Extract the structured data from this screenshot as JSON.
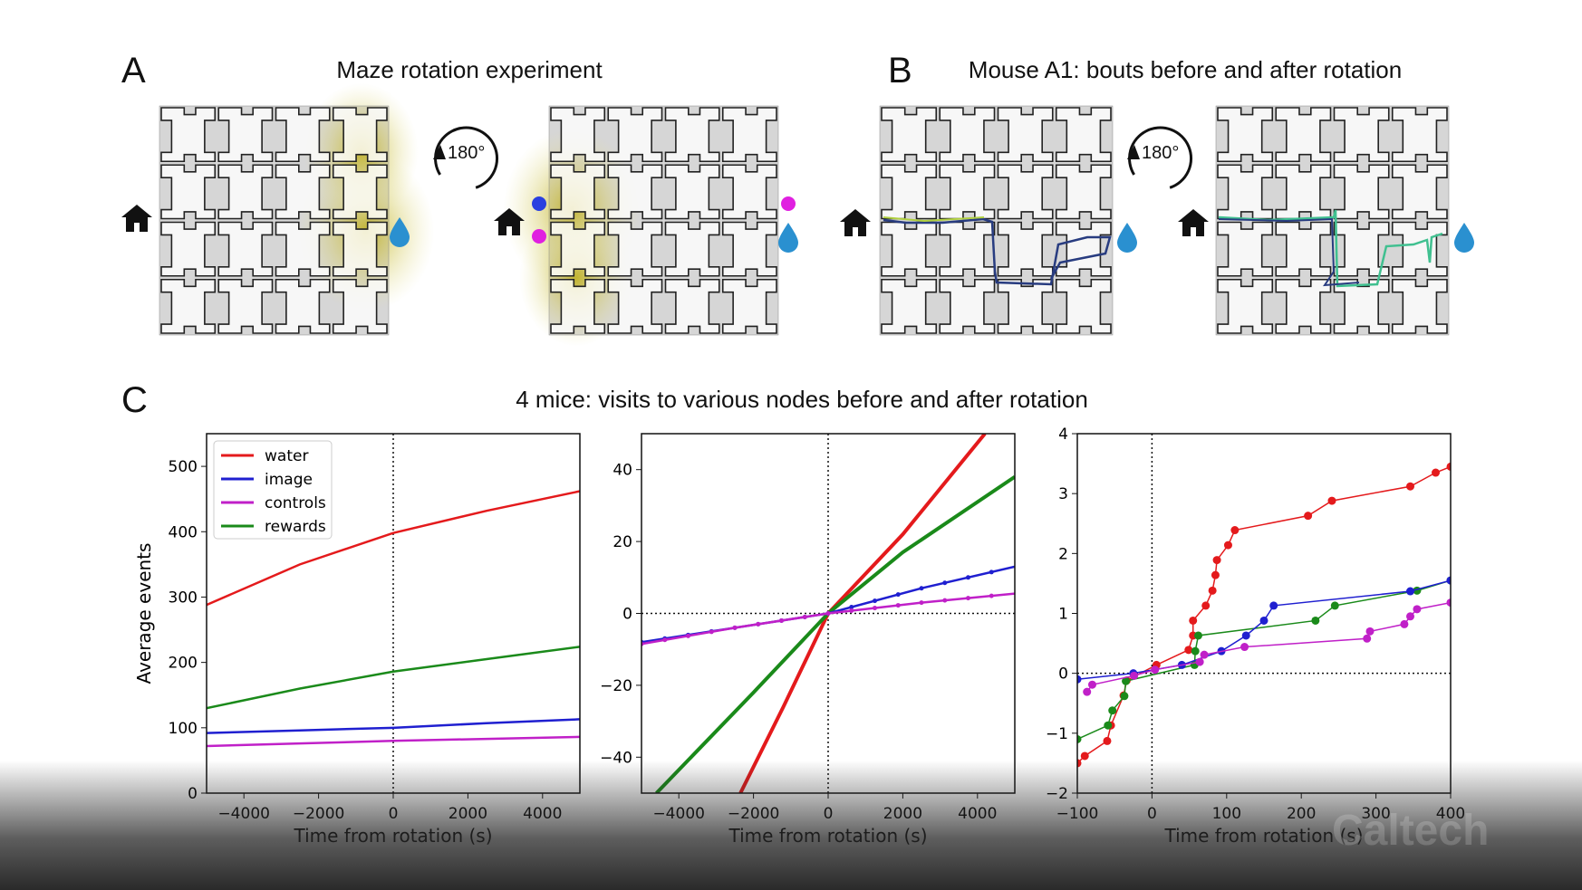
{
  "panels": {
    "a": {
      "letter": "A",
      "title": "Maze rotation experiment",
      "rotation_label": "180°"
    },
    "b": {
      "letter": "B",
      "title": "Mouse A1: bouts before and after rotation",
      "rotation_label": "180°"
    },
    "c": {
      "letter": "C",
      "title": "4 mice: visits to various nodes before and after rotation"
    }
  },
  "icons": [
    "home-icon",
    "water-drop-icon",
    "rotation-arrow-icon"
  ],
  "colors": {
    "water": "#e41a1c",
    "image": "#1f1fd0",
    "controls": "#c020c8",
    "rewards": "#1a8a1a",
    "highlight": "#c8c040",
    "marker_blue": "#2a40e0",
    "marker_magenta": "#e020e0"
  },
  "watermark": "Caltech",
  "chart_data": [
    {
      "type": "line",
      "title": "",
      "xlabel": "Time from rotation (s)",
      "ylabel": "Average events",
      "xlim": [
        -5000,
        5000
      ],
      "ylim": [
        0,
        550
      ],
      "xticks": [
        -4000,
        -2000,
        0,
        2000,
        4000
      ],
      "xtick_labels": [
        "−4000",
        "−2000",
        "0",
        "2000",
        "4000"
      ],
      "yticks": [
        0,
        100,
        200,
        300,
        400,
        500
      ],
      "ytick_labels": [
        "0",
        "100",
        "200",
        "300",
        "400",
        "500"
      ],
      "legend": {
        "placement": "top-left",
        "entries": [
          "water",
          "image",
          "controls",
          "rewards"
        ]
      },
      "series": [
        {
          "name": "water",
          "x": [
            -5000,
            -2500,
            0,
            2500,
            5000
          ],
          "y": [
            288,
            350,
            398,
            432,
            462
          ]
        },
        {
          "name": "image",
          "x": [
            -5000,
            -2500,
            0,
            2500,
            5000
          ],
          "y": [
            92,
            96,
            100,
            107,
            113
          ]
        },
        {
          "name": "controls",
          "x": [
            -5000,
            -2500,
            0,
            2500,
            5000
          ],
          "y": [
            72,
            76,
            80,
            83,
            86
          ]
        },
        {
          "name": "rewards",
          "x": [
            -5000,
            -2500,
            0,
            2500,
            5000
          ],
          "y": [
            130,
            160,
            186,
            205,
            224
          ]
        }
      ]
    },
    {
      "type": "line",
      "xlabel": "Time from rotation (s)",
      "ylabel": "",
      "xlim": [
        -5000,
        5000
      ],
      "ylim": [
        -50,
        50
      ],
      "xticks": [
        -4000,
        -2000,
        0,
        2000,
        4000
      ],
      "xtick_labels": [
        "−4000",
        "−2000",
        "0",
        "2000",
        "4000"
      ],
      "yticks": [
        -40,
        -20,
        0,
        20,
        40
      ],
      "ytick_labels": [
        "−40",
        "−20",
        "0",
        "20",
        "40"
      ],
      "series": [
        {
          "name": "water",
          "x": [
            -2350,
            -1200,
            0,
            2000,
            4200
          ],
          "y": [
            -50,
            -26,
            0,
            22,
            50
          ]
        },
        {
          "name": "rewards",
          "x": [
            -4600,
            -2000,
            0,
            2000,
            5000
          ],
          "y": [
            -50,
            -22,
            0,
            17,
            38
          ]
        },
        {
          "name": "image",
          "x": [
            -5000,
            -2500,
            0,
            2500,
            5000
          ],
          "y": [
            -8,
            -4,
            0,
            7,
            13
          ]
        },
        {
          "name": "controls",
          "x": [
            -5000,
            -2500,
            0,
            2500,
            5000
          ],
          "y": [
            -8.5,
            -4,
            0,
            3,
            5.5
          ]
        }
      ]
    },
    {
      "type": "line",
      "xlabel": "Time from rotation (s)",
      "ylabel": "",
      "xlim": [
        -100,
        400
      ],
      "ylim": [
        -2,
        4
      ],
      "xticks": [
        -100,
        0,
        100,
        200,
        300,
        400
      ],
      "xtick_labels": [
        "−100",
        "0",
        "100",
        "200",
        "300",
        "400"
      ],
      "yticks": [
        -2,
        -1,
        0,
        1,
        2,
        3,
        4
      ],
      "ytick_labels": [
        "−2",
        "−1",
        "0",
        "1",
        "2",
        "3",
        "4"
      ],
      "series": [
        {
          "name": "water",
          "x": [
            -100,
            -90,
            -60,
            -55,
            -38,
            -34,
            6,
            49,
            55,
            55,
            72,
            81,
            85,
            87,
            102,
            111,
            209,
            241,
            346,
            380,
            400
          ],
          "y": [
            -1.5,
            -1.38,
            -1.13,
            -0.87,
            -0.37,
            -0.12,
            0.14,
            0.39,
            0.63,
            0.88,
            1.13,
            1.38,
            1.64,
            1.89,
            2.14,
            2.39,
            2.63,
            2.88,
            3.12,
            3.35,
            3.45
          ],
          "markers": true
        },
        {
          "name": "rewards",
          "x": [
            -100,
            -59,
            -53,
            -37,
            -35,
            57,
            58,
            62,
            219,
            245,
            355,
            400
          ],
          "y": [
            -1.1,
            -0.87,
            -0.62,
            -0.38,
            -0.13,
            0.14,
            0.37,
            0.63,
            0.88,
            1.13,
            1.38,
            1.55
          ],
          "markers": true
        },
        {
          "name": "image",
          "x": [
            -100,
            -25,
            40,
            93,
            126,
            150,
            163,
            346,
            400
          ],
          "y": [
            -0.1,
            0.0,
            0.14,
            0.37,
            0.63,
            0.88,
            1.13,
            1.37,
            1.55
          ],
          "markers": true
        },
        {
          "name": "controls",
          "x": [
            -87,
            -80,
            -24,
            4,
            64,
            70,
            124,
            288,
            292,
            338,
            346,
            355,
            400
          ],
          "y": [
            -0.31,
            -0.19,
            -0.04,
            0.06,
            0.19,
            0.31,
            0.44,
            0.58,
            0.7,
            0.82,
            0.95,
            1.07,
            1.18
          ],
          "markers": true
        }
      ]
    }
  ]
}
